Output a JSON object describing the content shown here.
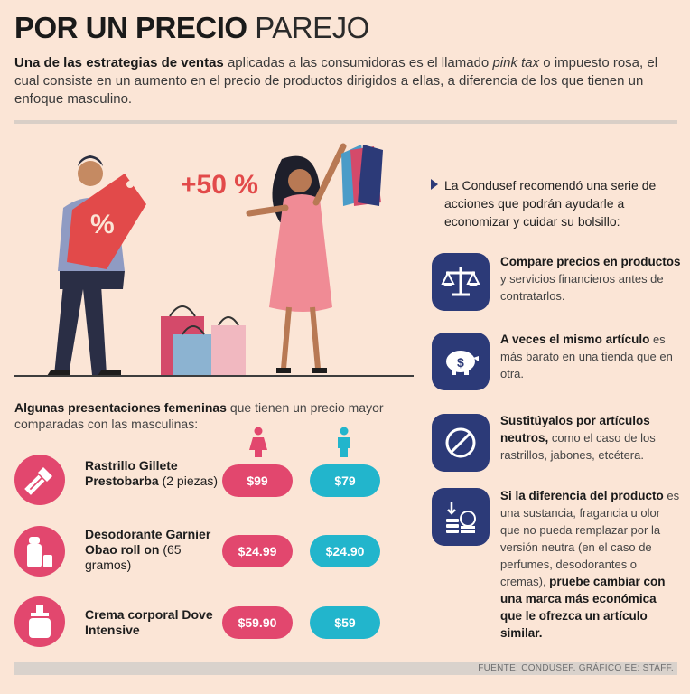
{
  "title": {
    "bold": "POR UN PRECIO",
    "light": "PAREJO"
  },
  "intro": {
    "bold": "Una de las estrategias de ventas",
    "text1": " aplicadas a las consumidoras es el llamado ",
    "italic": "pink tax",
    "text2": " o impuesto rosa, el cual consiste en un aumento en el precio de productos dirigidos a ellas, a diferencia de los que tienen un enfoque masculino."
  },
  "illustration": {
    "percent_tag": "%",
    "increase": "+50 %"
  },
  "products_intro": {
    "bold": "Algunas presentaciones femeninas",
    "text": " que tienen un precio mayor comparadas con las masculinas:"
  },
  "products": [
    {
      "name_bold": "Rastrillo Gillete Prestobarba",
      "name_rest": " (2 piezas)",
      "icon": "razor-icon",
      "female": "$99",
      "male": "$79"
    },
    {
      "name_bold": "Desodorante Garnier Obao roll on",
      "name_rest": " (65 gramos)",
      "icon": "deodorant-icon",
      "female": "$24.99",
      "male": "$24.90"
    },
    {
      "name_bold": "Crema corporal Dove Intensive",
      "name_rest": "",
      "icon": "cream-bottle-icon",
      "female": "$59.90",
      "male": "$59"
    }
  ],
  "tips_lead": "La Condusef recomendó una serie de acciones que podrán ayudarle a economizar y cuidar su bolsillo:",
  "tips": [
    {
      "icon": "scale-icon",
      "bold": "Compare precios en productos",
      "text": " y servicios financieros antes de contratarlos.",
      "bold2": "",
      "text2": ""
    },
    {
      "icon": "piggy-bank-icon",
      "bold": "A veces el mismo artículo",
      "text": " es más barato en una tienda que en otra.",
      "bold2": "",
      "text2": ""
    },
    {
      "icon": "no-symbol-icon",
      "bold": "Sustitúyalos por artículos neutros,",
      "text": " como el caso de los rastrillos, jabones, etcétera.",
      "bold2": "",
      "text2": ""
    },
    {
      "icon": "coins-icon",
      "bold": "Si la diferencia del producto",
      "text": " es una sustancia, fragancia u olor que no pueda remplazar por la versión neutra (en el caso de perfumes, desodorantes o cremas), ",
      "bold2": "pruebe cambiar con una marca más económica que le ofrezca un artículo similar.",
      "text2": ""
    }
  ],
  "source": "FUENTE: CONDUSEF. GRÁFICO EE: STAFF.",
  "colors": {
    "pink": "#e2476e",
    "cyan": "#22b5cc",
    "navy": "#2c3a78",
    "background": "#fbe5d6"
  }
}
